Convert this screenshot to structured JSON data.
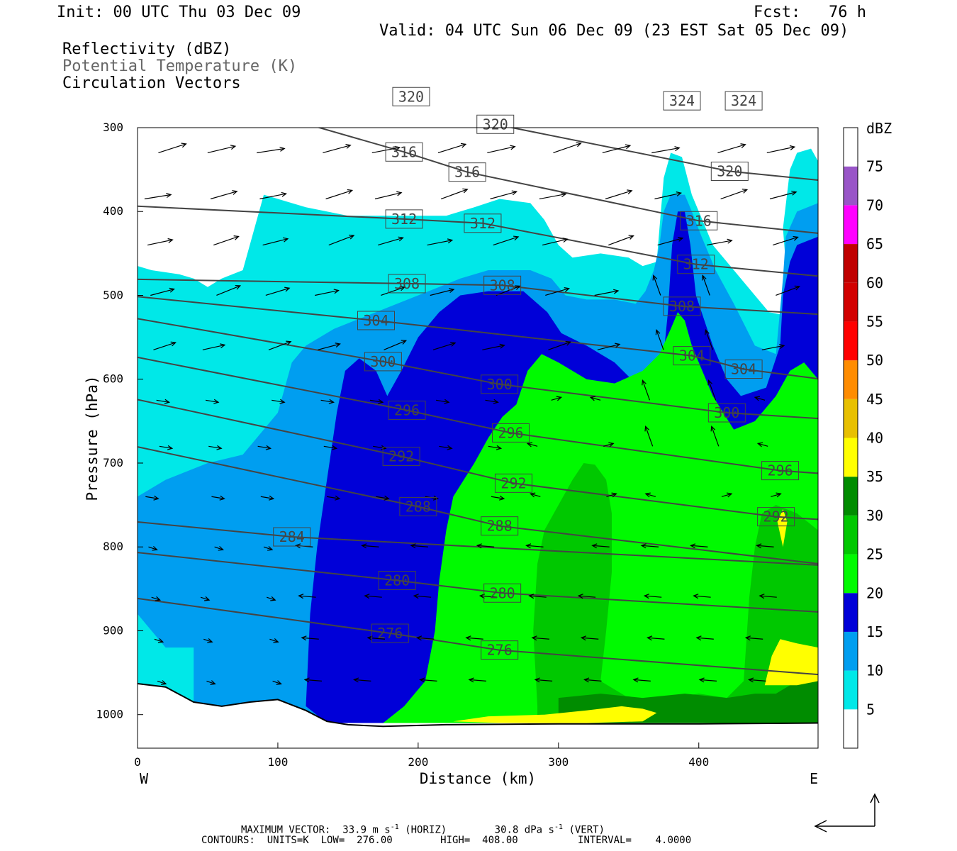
{
  "header": {
    "init": "Init: 00 UTC Thu 03 Dec 09",
    "fcst": "Fcst:   76 h",
    "valid": "Valid: 04 UTC Sun 06 Dec 09 (23 EST Sat 05 Dec 09)",
    "legend_lines": [
      "Reflectivity (dBZ)",
      "Potential Temperature (K)",
      "Circulation Vectors"
    ]
  },
  "footer": {
    "max_vector": "MAXIMUM VECTOR:  33.9 m s",
    "max_horiz": "(HORIZ)",
    "max_vert_val": "30.8 dPa s",
    "max_vert": "(VERT)",
    "superscript": "-1",
    "contours": "CONTOURS:  UNITS=K  LOW=  276.00        HIGH=  408.00          INTERVAL=    4.0000"
  },
  "colors": {
    "bands": [
      "#ffffff",
      "#00e8e8",
      "#009ef0",
      "#0000d8",
      "#00fa00",
      "#00c800",
      "#008c00",
      "#ffff00",
      "#e8c000",
      "#ff8c00",
      "#ff0000",
      "#d20000",
      "#c00000",
      "#ff00ff",
      "#9955c8",
      "#ffffff"
    ],
    "contour": "#444444",
    "vector": "#000000"
  },
  "chart_data": {
    "type": "heatmap",
    "title": "",
    "xlabel": "Distance (km)",
    "ylabel": "Pressure (hPa)",
    "xlim": [
      0,
      485
    ],
    "ylim": [
      1040,
      300
    ],
    "x_ticks": [
      0,
      100,
      200,
      300,
      400
    ],
    "y_ticks": [
      300,
      400,
      500,
      600,
      700,
      800,
      900,
      1000
    ],
    "x_end_labels": {
      "left": "W",
      "right": "E"
    },
    "colorbar": {
      "units": "dBZ",
      "levels": [
        5,
        10,
        15,
        20,
        25,
        30,
        35,
        40,
        45,
        50,
        55,
        60,
        65,
        70,
        75
      ]
    },
    "reflectivity_regions": [
      {
        "dbz": 5,
        "points": [
          [
            0,
            465
          ],
          [
            10,
            470
          ],
          [
            30,
            475
          ],
          [
            40,
            480
          ],
          [
            50,
            490
          ],
          [
            60,
            480
          ],
          [
            75,
            470
          ],
          [
            80,
            440
          ],
          [
            90,
            380
          ],
          [
            120,
            395
          ],
          [
            150,
            405
          ],
          [
            180,
            405
          ],
          [
            220,
            405
          ],
          [
            240,
            395
          ],
          [
            258,
            385
          ],
          [
            280,
            390
          ],
          [
            290,
            410
          ],
          [
            300,
            440
          ],
          [
            310,
            455
          ],
          [
            330,
            450
          ],
          [
            350,
            455
          ],
          [
            360,
            465
          ],
          [
            370,
            460
          ],
          [
            372,
            420
          ],
          [
            375,
            360
          ],
          [
            380,
            330
          ],
          [
            388,
            335
          ],
          [
            395,
            380
          ],
          [
            400,
            400
          ],
          [
            410,
            440
          ],
          [
            425,
            470
          ],
          [
            440,
            500
          ],
          [
            450,
            520
          ],
          [
            465,
            525
          ],
          [
            460,
            420
          ],
          [
            465,
            350
          ],
          [
            470,
            330
          ],
          [
            480,
            325
          ],
          [
            485,
            340
          ],
          [
            485,
            1010
          ],
          [
            0,
            1010
          ]
        ]
      },
      {
        "dbz": 10,
        "points": [
          [
            0,
            740
          ],
          [
            20,
            720
          ],
          [
            50,
            700
          ],
          [
            75,
            690
          ],
          [
            100,
            640
          ],
          [
            110,
            580
          ],
          [
            120,
            560
          ],
          [
            140,
            540
          ],
          [
            170,
            520
          ],
          [
            200,
            500
          ],
          [
            230,
            480
          ],
          [
            250,
            470
          ],
          [
            280,
            470
          ],
          [
            295,
            480
          ],
          [
            305,
            500
          ],
          [
            320,
            505
          ],
          [
            340,
            505
          ],
          [
            355,
            510
          ],
          [
            362,
            495
          ],
          [
            368,
            470
          ],
          [
            372,
            440
          ],
          [
            375,
            400
          ],
          [
            380,
            380
          ],
          [
            390,
            380
          ],
          [
            395,
            400
          ],
          [
            402,
            430
          ],
          [
            412,
            470
          ],
          [
            425,
            510
          ],
          [
            440,
            560
          ],
          [
            455,
            570
          ],
          [
            460,
            480
          ],
          [
            462,
            430
          ],
          [
            470,
            400
          ],
          [
            485,
            390
          ],
          [
            485,
            1010
          ],
          [
            40,
            1010
          ],
          [
            40,
            920
          ],
          [
            20,
            920
          ],
          [
            10,
            900
          ],
          [
            0,
            880
          ]
        ]
      },
      {
        "dbz": 15,
        "points": [
          [
            120,
            990
          ],
          [
            123,
            880
          ],
          [
            128,
            800
          ],
          [
            135,
            720
          ],
          [
            142,
            640
          ],
          [
            148,
            590
          ],
          [
            158,
            575
          ],
          [
            170,
            590
          ],
          [
            178,
            620
          ],
          [
            188,
            590
          ],
          [
            200,
            550
          ],
          [
            215,
            520
          ],
          [
            230,
            500
          ],
          [
            250,
            495
          ],
          [
            275,
            495
          ],
          [
            292,
            520
          ],
          [
            302,
            545
          ],
          [
            320,
            560
          ],
          [
            340,
            580
          ],
          [
            352,
            600
          ],
          [
            365,
            585
          ],
          [
            375,
            570
          ],
          [
            378,
            520
          ],
          [
            381,
            440
          ],
          [
            385,
            400
          ],
          [
            390,
            400
          ],
          [
            394,
            440
          ],
          [
            398,
            500
          ],
          [
            410,
            560
          ],
          [
            420,
            600
          ],
          [
            430,
            620
          ],
          [
            448,
            610
          ],
          [
            458,
            560
          ],
          [
            460,
            500
          ],
          [
            465,
            460
          ],
          [
            470,
            440
          ],
          [
            485,
            430
          ],
          [
            485,
            1010
          ],
          [
            135,
            1010
          ]
        ]
      },
      {
        "dbz": 20,
        "points": [
          [
            175,
            1010
          ],
          [
            190,
            990
          ],
          [
            205,
            960
          ],
          [
            212,
            900
          ],
          [
            215,
            840
          ],
          [
            220,
            780
          ],
          [
            225,
            740
          ],
          [
            240,
            700
          ],
          [
            250,
            670
          ],
          [
            260,
            645
          ],
          [
            270,
            630
          ],
          [
            278,
            590
          ],
          [
            288,
            570
          ],
          [
            300,
            580
          ],
          [
            320,
            600
          ],
          [
            340,
            605
          ],
          [
            360,
            590
          ],
          [
            372,
            570
          ],
          [
            380,
            540
          ],
          [
            385,
            520
          ],
          [
            390,
            530
          ],
          [
            395,
            560
          ],
          [
            410,
            620
          ],
          [
            425,
            660
          ],
          [
            440,
            650
          ],
          [
            455,
            620
          ],
          [
            465,
            590
          ],
          [
            475,
            580
          ],
          [
            485,
            600
          ],
          [
            485,
            1010
          ]
        ]
      },
      {
        "dbz": 25,
        "points": [
          [
            285,
            990
          ],
          [
            282,
            900
          ],
          [
            285,
            820
          ],
          [
            290,
            780
          ],
          [
            300,
            750
          ],
          [
            310,
            720
          ],
          [
            318,
            700
          ],
          [
            326,
            702
          ],
          [
            334,
            720
          ],
          [
            338,
            760
          ],
          [
            338,
            830
          ],
          [
            334,
            900
          ],
          [
            330,
            960
          ],
          [
            350,
            980
          ],
          [
            380,
            980
          ],
          [
            400,
            975
          ],
          [
            420,
            980
          ],
          [
            432,
            960
          ],
          [
            436,
            860
          ],
          [
            440,
            800
          ],
          [
            445,
            760
          ],
          [
            455,
            750
          ],
          [
            470,
            760
          ],
          [
            485,
            780
          ],
          [
            485,
            1010
          ],
          [
            285,
            1010
          ]
        ]
      },
      {
        "dbz": 30,
        "points": [
          [
            300,
            1000
          ],
          [
            300,
            980
          ],
          [
            330,
            975
          ],
          [
            360,
            980
          ],
          [
            390,
            975
          ],
          [
            420,
            980
          ],
          [
            440,
            975
          ],
          [
            455,
            975
          ],
          [
            465,
            965
          ],
          [
            470,
            950
          ],
          [
            485,
            950
          ],
          [
            485,
            1010
          ],
          [
            300,
            1010
          ]
        ]
      },
      {
        "dbz": 35,
        "points": [
          [
            225,
            1008
          ],
          [
            250,
            1002
          ],
          [
            290,
            1000
          ],
          [
            320,
            995
          ],
          [
            345,
            990
          ],
          [
            360,
            993
          ],
          [
            370,
            998
          ],
          [
            360,
            1008
          ],
          [
            320,
            1010
          ],
          [
            260,
            1010
          ]
        ]
      },
      {
        "dbz": 35,
        "points": [
          [
            447,
            965
          ],
          [
            452,
            930
          ],
          [
            458,
            910
          ],
          [
            470,
            915
          ],
          [
            485,
            920
          ],
          [
            485,
            960
          ],
          [
            470,
            965
          ]
        ]
      },
      {
        "dbz": 35,
        "points": [
          [
            456,
            770
          ],
          [
            460,
            755
          ],
          [
            463,
            770
          ],
          [
            460,
            800
          ]
        ]
      }
    ],
    "theta_contours": [
      {
        "k": 276,
        "labels": [
          [
            180,
            903
          ],
          [
            258,
            923
          ]
        ]
      },
      {
        "k": 280,
        "labels": [
          [
            185,
            840
          ],
          [
            260,
            855
          ]
        ]
      },
      {
        "k": 284,
        "labels": [
          [
            110,
            788
          ]
        ]
      },
      {
        "k": 288,
        "labels": [
          [
            200,
            752
          ],
          [
            258,
            775
          ]
        ]
      },
      {
        "k": 292,
        "labels": [
          [
            188,
            692
          ],
          [
            268,
            724
          ],
          [
            455,
            764
          ]
        ]
      },
      {
        "k": 296,
        "labels": [
          [
            192,
            637
          ],
          [
            266,
            664
          ],
          [
            458,
            709
          ]
        ]
      },
      {
        "k": 300,
        "labels": [
          [
            175,
            579
          ],
          [
            258,
            606
          ],
          [
            420,
            640
          ]
        ]
      },
      {
        "k": 304,
        "labels": [
          [
            170,
            530
          ],
          [
            395,
            572
          ],
          [
            432,
            588
          ]
        ]
      },
      {
        "k": 308,
        "labels": [
          [
            192,
            486
          ],
          [
            260,
            488
          ],
          [
            388,
            513
          ]
        ]
      },
      {
        "k": 312,
        "labels": [
          [
            190,
            409
          ],
          [
            246,
            414
          ],
          [
            398,
            463
          ]
        ]
      },
      {
        "k": 316,
        "labels": [
          [
            190,
            329
          ],
          [
            235,
            353
          ],
          [
            400,
            411
          ]
        ]
      },
      {
        "k": 320,
        "labels": [
          [
            195,
            263
          ],
          [
            255,
            296
          ],
          [
            422,
            352
          ]
        ]
      },
      {
        "k": 324,
        "labels": [
          [
            388,
            268
          ],
          [
            432,
            268
          ]
        ]
      }
    ]
  }
}
